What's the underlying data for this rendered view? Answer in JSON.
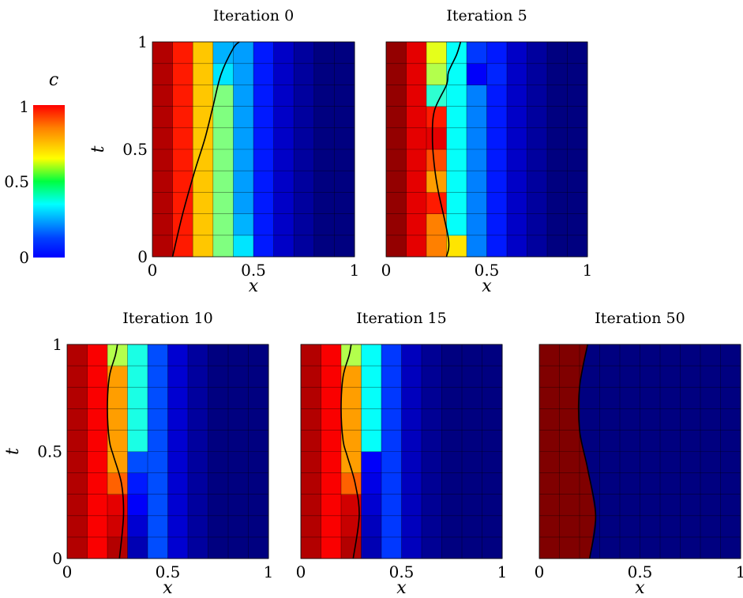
{
  "chart_data": {
    "type": "heatmap",
    "colorbar": {
      "label": "c",
      "ticks": [
        "0",
        "0.5",
        "1"
      ],
      "range": [
        0,
        1
      ],
      "colormap": "jet"
    },
    "panels": [
      {
        "title": "Iteration 0",
        "xlabel": "x",
        "ylabel": "t",
        "xticks": [
          "0",
          "0.5",
          "1"
        ],
        "yticks": [
          "0",
          "0.5",
          "1"
        ],
        "xlim": [
          0,
          1
        ],
        "ylim": [
          0,
          1
        ],
        "grid": "10x10",
        "column_values": [
          0.95,
          0.85,
          0.68,
          0.5,
          0.28,
          0.15,
          0.07,
          0.03,
          0.0,
          0.0
        ],
        "cell_overrides": [
          [
            4,
            0,
            0.35
          ],
          [
            4,
            1,
            0.3
          ],
          [
            3,
            8,
            0.35
          ],
          [
            3,
            9,
            0.3
          ]
        ],
        "interface": [
          [
            0.1,
            0.0
          ],
          [
            0.15,
            0.2
          ],
          [
            0.21,
            0.4
          ],
          [
            0.26,
            0.55
          ],
          [
            0.3,
            0.7
          ],
          [
            0.34,
            0.85
          ],
          [
            0.4,
            0.97
          ],
          [
            0.43,
            1.0
          ]
        ]
      },
      {
        "title": "Iteration 5",
        "xlabel": "x",
        "ylabel": "",
        "xticks": [
          "0",
          "0.5",
          "1"
        ],
        "yticks": [],
        "xlim": [
          0,
          1
        ],
        "ylim": [
          0,
          1
        ],
        "grid": "10x10",
        "column_values": [
          0.98,
          0.9,
          0.75,
          0.38,
          0.25,
          0.15,
          0.07,
          0.03,
          0.0,
          0.0
        ],
        "cell_overrides": [
          [
            3,
            0,
            0.65
          ],
          [
            2,
            2,
            0.85
          ],
          [
            2,
            3,
            0.72
          ],
          [
            2,
            4,
            0.8
          ],
          [
            2,
            5,
            0.9
          ],
          [
            2,
            6,
            0.85
          ],
          [
            2,
            7,
            0.42
          ],
          [
            2,
            8,
            0.55
          ],
          [
            2,
            9,
            0.6
          ],
          [
            4,
            8,
            0.12
          ],
          [
            5,
            8,
            0.16
          ],
          [
            4,
            9,
            0.18
          ]
        ],
        "interface": [
          [
            0.3,
            0.0
          ],
          [
            0.31,
            0.08
          ],
          [
            0.26,
            0.3
          ],
          [
            0.24,
            0.42
          ],
          [
            0.23,
            0.55
          ],
          [
            0.24,
            0.68
          ],
          [
            0.3,
            0.8
          ],
          [
            0.31,
            0.86
          ],
          [
            0.35,
            0.94
          ],
          [
            0.37,
            1.0
          ]
        ]
      },
      {
        "title": "Iteration 10",
        "xlabel": "x",
        "ylabel": "t",
        "xticks": [
          "0",
          "0.5",
          "1"
        ],
        "yticks": [
          "0",
          "0.5",
          "1"
        ],
        "xlim": [
          0,
          1
        ],
        "ylim": [
          0,
          1
        ],
        "grid": "10x10",
        "column_values": [
          0.95,
          0.88,
          0.72,
          0.4,
          0.2,
          0.08,
          0.03,
          0.0,
          0.0,
          0.0
        ],
        "cell_overrides": [
          [
            2,
            3,
            0.78
          ],
          [
            2,
            9,
            0.55
          ],
          [
            2,
            0,
            0.95
          ],
          [
            2,
            1,
            0.92
          ],
          [
            2,
            2,
            0.9
          ],
          [
            3,
            0,
            0.05
          ],
          [
            3,
            1,
            0.08
          ],
          [
            3,
            2,
            0.12
          ],
          [
            3,
            3,
            0.15
          ],
          [
            3,
            4,
            0.2
          ]
        ],
        "interface": [
          [
            0.26,
            0.0
          ],
          [
            0.28,
            0.2
          ],
          [
            0.27,
            0.35
          ],
          [
            0.23,
            0.48
          ],
          [
            0.21,
            0.55
          ],
          [
            0.2,
            0.7
          ],
          [
            0.21,
            0.85
          ],
          [
            0.24,
            0.95
          ],
          [
            0.25,
            1.0
          ]
        ]
      },
      {
        "title": "Iteration 15",
        "xlabel": "x",
        "ylabel": "",
        "xticks": [
          "0",
          "0.5",
          "1"
        ],
        "yticks": [],
        "xlim": [
          0,
          1
        ],
        "ylim": [
          0,
          1
        ],
        "grid": "10x10",
        "column_values": [
          0.95,
          0.88,
          0.72,
          0.38,
          0.18,
          0.06,
          0.02,
          0.0,
          0.0,
          0.0
        ],
        "cell_overrides": [
          [
            2,
            0,
            0.95
          ],
          [
            2,
            1,
            0.93
          ],
          [
            2,
            2,
            0.92
          ],
          [
            2,
            3,
            0.78
          ],
          [
            2,
            4,
            0.72
          ],
          [
            2,
            9,
            0.55
          ],
          [
            3,
            0,
            0.05
          ],
          [
            3,
            1,
            0.06
          ],
          [
            3,
            2,
            0.08
          ],
          [
            3,
            3,
            0.1
          ],
          [
            3,
            4,
            0.12
          ]
        ],
        "interface": [
          [
            0.26,
            0.0
          ],
          [
            0.29,
            0.2
          ],
          [
            0.27,
            0.35
          ],
          [
            0.23,
            0.48
          ],
          [
            0.21,
            0.55
          ],
          [
            0.2,
            0.7
          ],
          [
            0.21,
            0.85
          ],
          [
            0.24,
            0.95
          ],
          [
            0.25,
            1.0
          ]
        ]
      },
      {
        "title": "Iteration 50",
        "xlabel": "x",
        "ylabel": "",
        "xticks": [
          "0",
          "0.5",
          "1"
        ],
        "yticks": [],
        "xlim": [
          0,
          1
        ],
        "ylim": [
          0,
          1
        ],
        "grid": "10x10",
        "column_values": [
          1.0,
          1.0,
          0.0,
          0.0,
          0.0,
          0.0,
          0.0,
          0.0,
          0.0,
          0.0
        ],
        "cell_overrides": [],
        "interface": [
          [
            0.25,
            0.0
          ],
          [
            0.28,
            0.2
          ],
          [
            0.24,
            0.42
          ],
          [
            0.2,
            0.6
          ],
          [
            0.2,
            0.8
          ],
          [
            0.24,
            1.0
          ]
        ],
        "sharp": true
      }
    ]
  }
}
